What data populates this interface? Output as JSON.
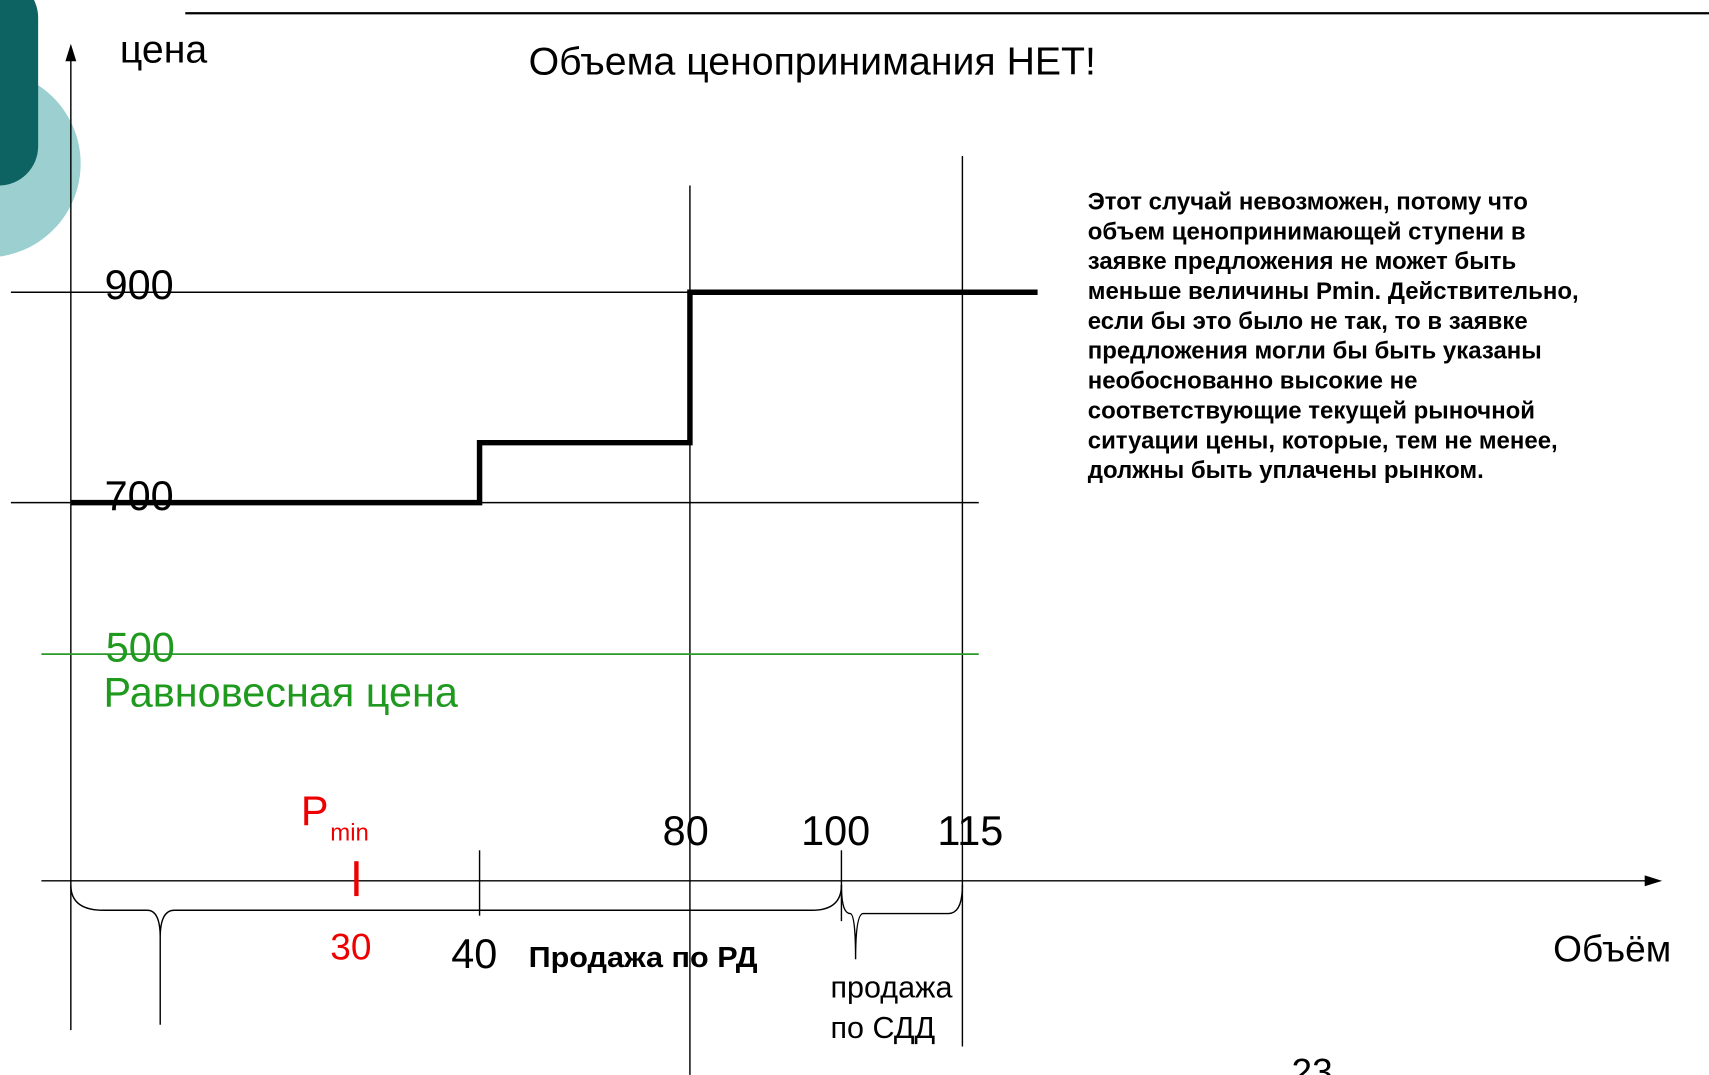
{
  "y_axis_label": "цена",
  "title": "Объема ценопринимания НЕТ!",
  "price_labels": [
    "900",
    "700",
    "500"
  ],
  "equilibrium_label": "Равновесная цена",
  "pmin": {
    "label": "P",
    "subscript": "min",
    "value": "30"
  },
  "volume_labels": [
    "40",
    "80",
    "100",
    "115"
  ],
  "segment_labels": [
    "Продажа по РД",
    "продажа",
    "по СДД"
  ],
  "x_axis_label": "Объём",
  "note_lines": [
    "Этот случай невозможен, потому что",
    "объем ценопринимающей ступени в",
    "заявке предложения не может быть",
    "меньше величины Pmin. Действительно,",
    "если бы это было не так, то в заявке",
    "предложения могли бы быть указаны",
    "необоснованно высокие не",
    "соответствующие текущей рыночной",
    "ситуации цены, которые, тем не менее,",
    "должны быть уплачены рынком."
  ],
  "page_number": "23"
}
